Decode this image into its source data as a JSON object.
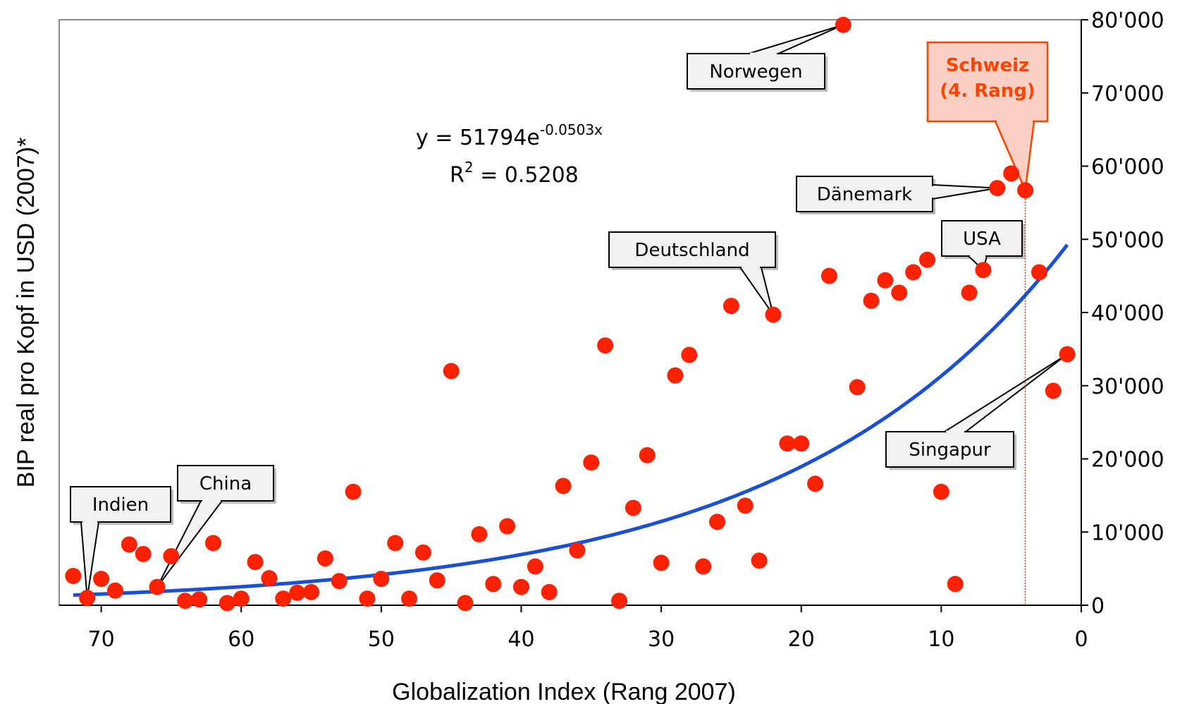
{
  "chart_data": {
    "type": "scatter",
    "title": "",
    "xlabel": "Globalization Index (Rang 2007)",
    "ylabel": "BIP real pro Kopf in USD (2007)*",
    "xlim": [
      73,
      0
    ],
    "xreversed": true,
    "ylim": [
      0,
      80000
    ],
    "x_ticks": [
      70,
      60,
      50,
      40,
      30,
      20,
      10,
      0
    ],
    "x_tick_labels": [
      "70",
      "60",
      "50",
      "40",
      "30",
      "20",
      "10",
      "0"
    ],
    "y_ticks": [
      0,
      10000,
      20000,
      30000,
      40000,
      50000,
      60000,
      70000,
      80000
    ],
    "y_tick_labels": [
      "0",
      "10'000",
      "20'000",
      "30'000",
      "40'000",
      "50'000",
      "60'000",
      "70'000",
      "80'000"
    ],
    "y_axis_side": "right",
    "grid": false,
    "point_color": "#ff2200",
    "trend_color": "#1a4fd6",
    "highlight_color": "#ff4400",
    "points": [
      {
        "x": 72,
        "y": 4000
      },
      {
        "x": 71,
        "y": 1000
      },
      {
        "x": 70,
        "y": 3600
      },
      {
        "x": 69,
        "y": 2000
      },
      {
        "x": 68,
        "y": 8300
      },
      {
        "x": 67,
        "y": 7000
      },
      {
        "x": 66,
        "y": 2500
      },
      {
        "x": 65,
        "y": 6700
      },
      {
        "x": 64,
        "y": 600
      },
      {
        "x": 63,
        "y": 800
      },
      {
        "x": 62,
        "y": 8500
      },
      {
        "x": 61,
        "y": 300
      },
      {
        "x": 60,
        "y": 900
      },
      {
        "x": 59,
        "y": 5900
      },
      {
        "x": 58,
        "y": 3700
      },
      {
        "x": 57,
        "y": 900
      },
      {
        "x": 56,
        "y": 1700
      },
      {
        "x": 55,
        "y": 1800
      },
      {
        "x": 54,
        "y": 6400
      },
      {
        "x": 53,
        "y": 3300
      },
      {
        "x": 52,
        "y": 15500
      },
      {
        "x": 51,
        "y": 900
      },
      {
        "x": 50,
        "y": 3600
      },
      {
        "x": 49,
        "y": 8500
      },
      {
        "x": 48,
        "y": 900
      },
      {
        "x": 47,
        "y": 7200
      },
      {
        "x": 46,
        "y": 3400
      },
      {
        "x": 45,
        "y": 32000
      },
      {
        "x": 44,
        "y": 300
      },
      {
        "x": 43,
        "y": 9700
      },
      {
        "x": 42,
        "y": 2900
      },
      {
        "x": 41,
        "y": 10800
      },
      {
        "x": 40,
        "y": 2500
      },
      {
        "x": 39,
        "y": 5300
      },
      {
        "x": 38,
        "y": 1800
      },
      {
        "x": 37,
        "y": 16300
      },
      {
        "x": 36,
        "y": 7500
      },
      {
        "x": 35,
        "y": 19500
      },
      {
        "x": 34,
        "y": 35500
      },
      {
        "x": 33,
        "y": 600
      },
      {
        "x": 32,
        "y": 13300
      },
      {
        "x": 31,
        "y": 20500
      },
      {
        "x": 30,
        "y": 5800
      },
      {
        "x": 29,
        "y": 31400
      },
      {
        "x": 28,
        "y": 34200
      },
      {
        "x": 27,
        "y": 5300
      },
      {
        "x": 26,
        "y": 11400
      },
      {
        "x": 25,
        "y": 40900
      },
      {
        "x": 24,
        "y": 13600
      },
      {
        "x": 23,
        "y": 6100
      },
      {
        "x": 22,
        "y": 39700
      },
      {
        "x": 21,
        "y": 22100
      },
      {
        "x": 20,
        "y": 22100
      },
      {
        "x": 19,
        "y": 16600
      },
      {
        "x": 18,
        "y": 45000
      },
      {
        "x": 17,
        "y": 79300
      },
      {
        "x": 16,
        "y": 29800
      },
      {
        "x": 15,
        "y": 41600
      },
      {
        "x": 14,
        "y": 44400
      },
      {
        "x": 13,
        "y": 42700
      },
      {
        "x": 12,
        "y": 45500
      },
      {
        "x": 11,
        "y": 47200
      },
      {
        "x": 10,
        "y": 15500
      },
      {
        "x": 9,
        "y": 2900
      },
      {
        "x": 8,
        "y": 42700
      },
      {
        "x": 7,
        "y": 45800
      },
      {
        "x": 6,
        "y": 57000
      },
      {
        "x": 5,
        "y": 59000
      },
      {
        "x": 4,
        "y": 56700
      },
      {
        "x": 3,
        "y": 45500
      },
      {
        "x": 2,
        "y": 29300
      },
      {
        "x": 1,
        "y": 34300
      }
    ],
    "trendline": {
      "label": "y = 51794e-0.0503x",
      "a": 51794,
      "b": -0.0503,
      "x_range": [
        72,
        1
      ],
      "equation_main": "y = 51794e",
      "equation_exp": "-0.0503x",
      "r2_main": "R",
      "r2_exp": "2",
      "r2_value": " = 0.5208"
    },
    "annotations": [
      {
        "label": "Norwegen",
        "target": {
          "x": 17,
          "y": 79300
        }
      },
      {
        "label": "Dänemark",
        "target": {
          "x": 6,
          "y": 57000
        }
      },
      {
        "label": "Deutschland",
        "target": {
          "x": 22,
          "y": 39700
        }
      },
      {
        "label": "USA",
        "target": {
          "x": 7,
          "y": 45800
        }
      },
      {
        "label": "Singapur",
        "target": {
          "x": 1,
          "y": 34300
        }
      },
      {
        "label": "China",
        "target": {
          "x": 66,
          "y": 2500
        }
      },
      {
        "label": "Indien",
        "target": {
          "x": 71,
          "y": 1000
        }
      }
    ],
    "highlight": {
      "line1": "Schweiz",
      "line2": "(4. Rang)",
      "target": {
        "x": 4,
        "y": 56700
      }
    }
  }
}
